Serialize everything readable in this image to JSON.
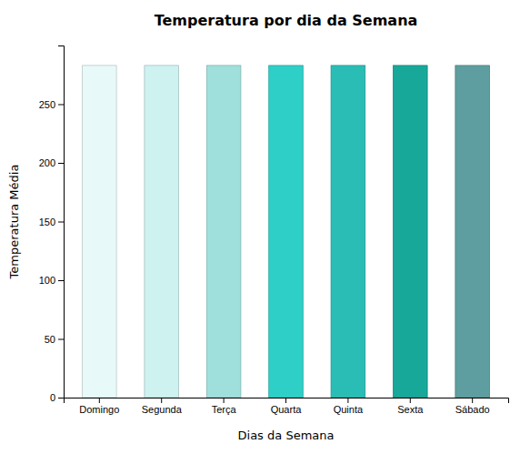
{
  "chart_data": {
    "type": "bar",
    "title": "Temperatura por dia da Semana",
    "xlabel": "Dias da Semana",
    "ylabel": "Temperatura Média",
    "categories": [
      "Domingo",
      "Segunda",
      "Terça",
      "Quarta",
      "Quinta",
      "Sexta",
      "Sábado"
    ],
    "values": [
      283,
      283,
      283,
      283,
      283,
      283,
      283
    ],
    "colors": [
      "#e8f9f9",
      "#cdf2f0",
      "#a0e0dc",
      "#2ecfc7",
      "#29bdb5",
      "#17a89a",
      "#5f9ea0"
    ],
    "ylim": [
      0,
      300
    ],
    "yticks": [
      0,
      50,
      100,
      150,
      200,
      250
    ],
    "grid": false
  }
}
